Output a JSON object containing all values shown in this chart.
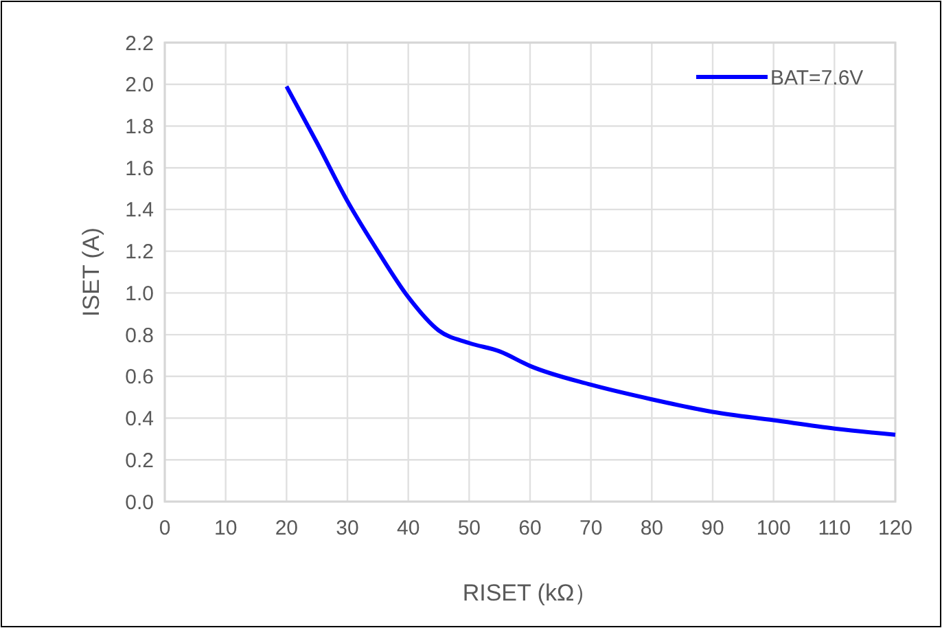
{
  "chart_data": {
    "type": "line",
    "xlabel": "RISET (kΩ）",
    "ylabel": "ISET (A)",
    "x": [
      20,
      25,
      30,
      35,
      40,
      45,
      50,
      55,
      60,
      70,
      80,
      90,
      100,
      110,
      120
    ],
    "series": [
      {
        "name": "BAT=7.6V",
        "color": "#0000ff",
        "values": [
          1.99,
          1.72,
          1.44,
          1.2,
          0.98,
          0.82,
          0.76,
          0.72,
          0.65,
          0.56,
          0.49,
          0.43,
          0.39,
          0.35,
          0.32
        ]
      }
    ],
    "xlim": [
      0,
      120
    ],
    "xticks": [
      0,
      10,
      20,
      30,
      40,
      50,
      60,
      70,
      80,
      90,
      100,
      110,
      120
    ],
    "ylim": [
      0,
      2.2
    ],
    "yticks": [
      {
        "value": 0,
        "label": "0.0"
      },
      {
        "value": 0.2,
        "label": "0.2"
      },
      {
        "value": 0.4,
        "label": "0.4"
      },
      {
        "value": 0.6,
        "label": "0.6"
      },
      {
        "value": 0.8,
        "label": "0.8"
      },
      {
        "value": 1,
        "label": "1.0"
      },
      {
        "value": 1.2,
        "label": "1.2"
      },
      {
        "value": 1.4,
        "label": "1.4"
      },
      {
        "value": 1.6,
        "label": "1.6"
      },
      {
        "value": 1.8,
        "label": "1.8"
      },
      {
        "value": 2,
        "label": "2.0"
      },
      {
        "value": 2.2,
        "label": "2.2"
      }
    ],
    "grid": true,
    "legend": "top right",
    "marker": "none",
    "line_style": "solid"
  }
}
